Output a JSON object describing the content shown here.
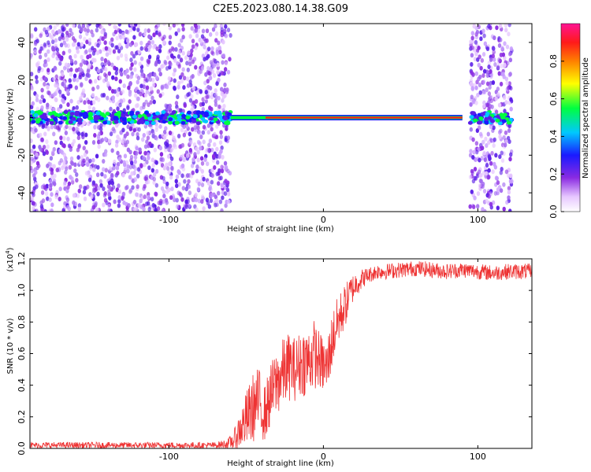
{
  "title": "C2E5.2023.080.14.38.G09",
  "chart_data": [
    {
      "type": "heatmap",
      "xlabel": "Height of straight line (km)",
      "ylabel": "Frequency (Hz)",
      "xlim": [
        -190,
        135
      ],
      "ylim": [
        -50,
        50
      ],
      "xticks": [
        -100,
        0,
        100
      ],
      "yticks": [
        -40,
        -20,
        0,
        20,
        40
      ],
      "colorbar": {
        "label": "Normalized spectral amplitude",
        "range": [
          0,
          1
        ],
        "ticks": [
          0.0,
          0.2,
          0.4,
          0.6,
          0.8
        ],
        "colormap": [
          "#ffffff",
          "#e6c6ff",
          "#8a2be2",
          "#1a1aff",
          "#00c8ff",
          "#00ff40",
          "#ffff00",
          "#ff8000",
          "#ff1a1a",
          "#ff1493"
        ]
      },
      "signal_regions": [
        {
          "x_range": [
            -190,
            -60
          ],
          "description_level": "noisy",
          "center_freq": 0
        },
        {
          "x_range": [
            -60,
            90
          ],
          "description_level": "strong tone",
          "center_freq": 0
        },
        {
          "x_range": [
            95,
            122
          ],
          "description_level": "noisy",
          "center_freq": 0
        }
      ]
    },
    {
      "type": "line",
      "xlabel": "Height of straight line (km)",
      "ylabel": "SNR (10 * v/v)",
      "yscale_label": "(x10",
      "yscale_exp": "4",
      "yscale_close": ")",
      "xlim": [
        -190,
        135
      ],
      "ylim": [
        0,
        1.2
      ],
      "xticks": [
        -100,
        0,
        100
      ],
      "yticks": [
        0.0,
        0.2,
        0.4,
        0.6,
        0.8,
        1.0,
        1.2
      ],
      "series": [
        {
          "color": "#ee3333",
          "x": [
            -190,
            -170,
            -150,
            -130,
            -110,
            -90,
            -70,
            -62,
            -58,
            -54,
            -50,
            -46,
            -42,
            -38,
            -34,
            -30,
            -26,
            -22,
            -18,
            -14,
            -10,
            -6,
            -2,
            2,
            6,
            10,
            14,
            18,
            22,
            26,
            30,
            35,
            40,
            50,
            60,
            70,
            80,
            90,
            100,
            110,
            120,
            135
          ],
          "y": [
            0.02,
            0.02,
            0.02,
            0.02,
            0.02,
            0.02,
            0.02,
            0.03,
            0.05,
            0.12,
            0.18,
            0.25,
            0.3,
            0.22,
            0.34,
            0.42,
            0.48,
            0.52,
            0.5,
            0.55,
            0.55,
            0.6,
            0.55,
            0.5,
            0.7,
            0.82,
            0.9,
            1.0,
            1.05,
            1.08,
            1.1,
            1.12,
            1.12,
            1.13,
            1.14,
            1.13,
            1.12,
            1.13,
            1.12,
            1.11,
            1.12,
            1.12
          ],
          "noise_amplitude": [
            0.02,
            0.02,
            0.02,
            0.02,
            0.02,
            0.02,
            0.02,
            0.03,
            0.06,
            0.12,
            0.18,
            0.22,
            0.22,
            0.18,
            0.2,
            0.22,
            0.22,
            0.22,
            0.2,
            0.22,
            0.22,
            0.22,
            0.18,
            0.18,
            0.18,
            0.16,
            0.14,
            0.1,
            0.08,
            0.06,
            0.05,
            0.05,
            0.05,
            0.05,
            0.05,
            0.05,
            0.05,
            0.05,
            0.05,
            0.05,
            0.05,
            0.05
          ]
        }
      ]
    }
  ]
}
